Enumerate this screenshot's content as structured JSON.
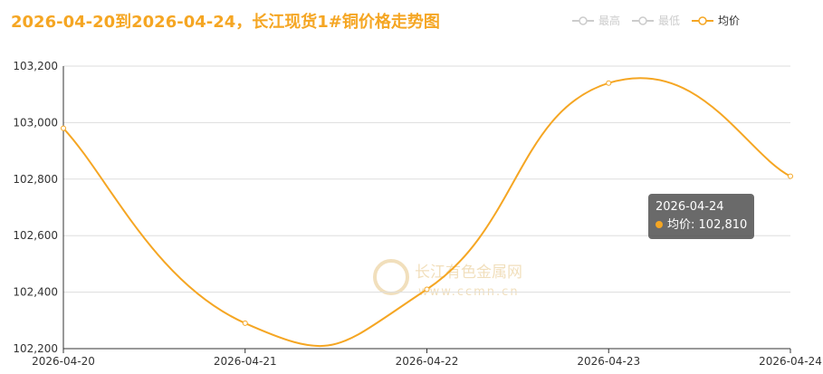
{
  "chart_data": {
    "type": "line",
    "title": "2026-04-20到2026-04-24，长江现货1#铜价格走势图",
    "x": [
      "2026-04-20",
      "2026-04-21",
      "2026-04-22",
      "2026-04-23",
      "2026-04-24"
    ],
    "series": [
      {
        "name": "最高",
        "color": "#cccccc",
        "visible": false,
        "values": [
          null,
          null,
          null,
          null,
          null
        ]
      },
      {
        "name": "最低",
        "color": "#cccccc",
        "visible": false,
        "values": [
          null,
          null,
          null,
          null,
          null
        ]
      },
      {
        "name": "均价",
        "color": "#f5a623",
        "visible": true,
        "values": [
          102980,
          102290,
          102410,
          103140,
          102810
        ],
        "value_labels": [
          null,
          null,
          null,
          null,
          "102,810"
        ]
      }
    ],
    "ylim": [
      102200,
      103200
    ],
    "yticks": [
      {
        "value": 102200,
        "label": "102,200"
      },
      {
        "value": 102400,
        "label": "102,400"
      },
      {
        "value": 102600,
        "label": "102,600"
      },
      {
        "value": 102800,
        "label": "102,800"
      },
      {
        "value": 103000,
        "label": "103,000"
      },
      {
        "value": 103200,
        "label": "103,200"
      }
    ],
    "grid": true,
    "legend": "top-right",
    "tooltip_index": 4,
    "watermark": [
      "长江有色金属网",
      "www.ccmn.cn"
    ]
  }
}
